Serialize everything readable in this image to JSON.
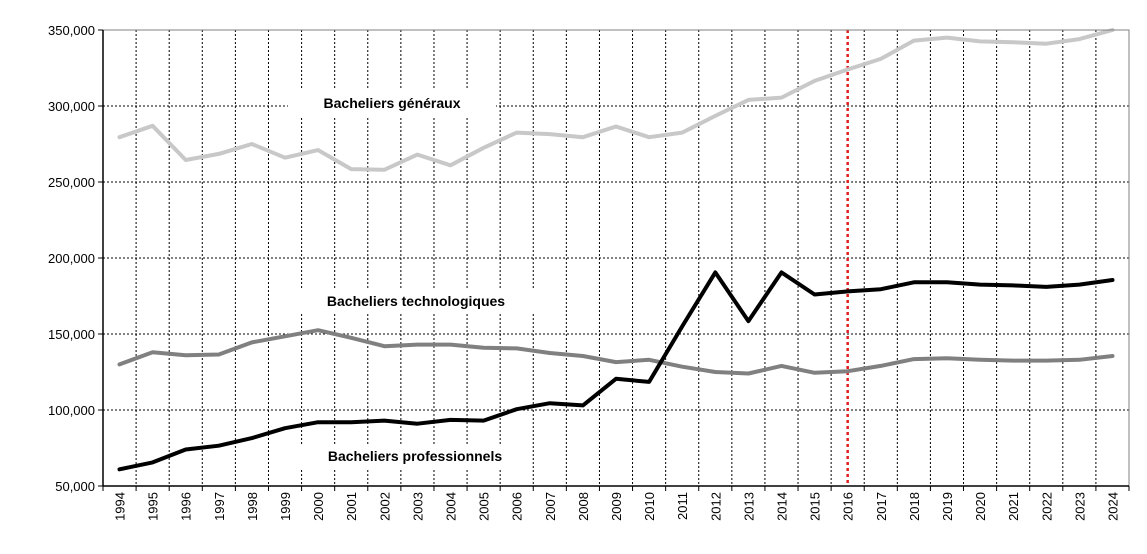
{
  "chart_data": {
    "type": "line",
    "title": "",
    "xlabel": "",
    "ylabel": "",
    "ylim": [
      50000,
      350000
    ],
    "y_ticks": [
      50000,
      100000,
      150000,
      200000,
      250000,
      300000,
      350000
    ],
    "y_tick_labels": [
      "50,000",
      "100,000",
      "150,000",
      "200,000",
      "250,000",
      "300,000",
      "350,000"
    ],
    "x": [
      "1994",
      "1995",
      "1996",
      "1997",
      "1998",
      "1999",
      "2000",
      "2001",
      "2002",
      "2003",
      "2004",
      "2005",
      "2006",
      "2007",
      "2008",
      "2009",
      "2010",
      "2011",
      "2012",
      "2013",
      "2014",
      "2015",
      "2016",
      "2017",
      "2018",
      "2019",
      "2020",
      "2021",
      "2022",
      "2023",
      "2024"
    ],
    "grid": true,
    "reference_line": {
      "x": "2016",
      "color": "#e02020"
    },
    "series": [
      {
        "name": "Bacheliers généraux",
        "color": "#c8c8c8",
        "values": [
          279500,
          287000,
          264500,
          268500,
          275000,
          266000,
          271000,
          258500,
          258000,
          268000,
          261000,
          272500,
          282500,
          281500,
          279500,
          286500,
          279500,
          282500,
          293500,
          304000,
          305500,
          316500,
          324000,
          331000,
          343000,
          345000,
          342500,
          342000,
          341000,
          344000,
          350000
        ]
      },
      {
        "name": "Bacheliers technologiques",
        "color": "#808080",
        "values": [
          130000,
          138000,
          136000,
          136500,
          144500,
          148500,
          152500,
          147500,
          142000,
          143000,
          143000,
          141000,
          140500,
          137500,
          135500,
          131500,
          133000,
          128500,
          125000,
          124000,
          129000,
          124500,
          125500,
          129000,
          133500,
          134000,
          133000,
          132500,
          132500,
          133000,
          135500
        ]
      },
      {
        "name": "Bacheliers professionnels",
        "color": "#000000",
        "values": [
          61000,
          65500,
          74000,
          76500,
          81500,
          88000,
          92000,
          92000,
          93000,
          91000,
          93500,
          93000,
          100500,
          104500,
          103000,
          120500,
          118500,
          155000,
          190500,
          158500,
          190500,
          176000,
          178000,
          179500,
          184000,
          184000,
          182500,
          182000,
          181000,
          182500,
          185500
        ]
      }
    ],
    "series_labels": [
      {
        "text": "Bacheliers généraux"
      },
      {
        "text": "Bacheliers technologiques"
      },
      {
        "text": "Bacheliers professionnels"
      }
    ]
  }
}
